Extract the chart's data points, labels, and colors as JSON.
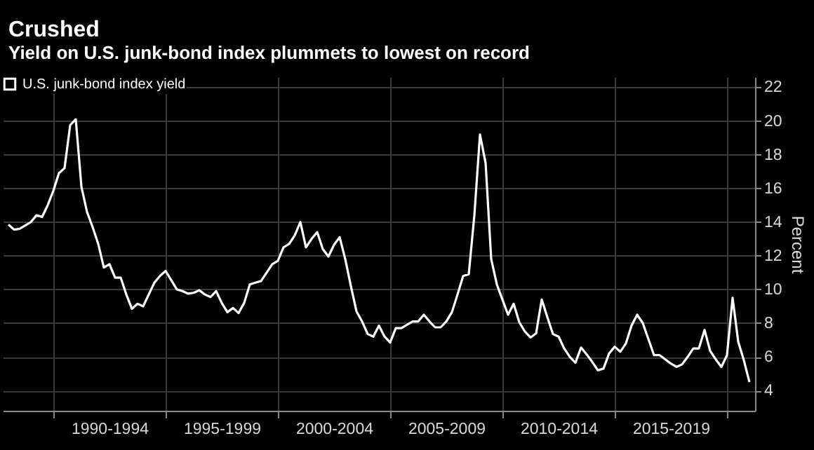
{
  "chart_data": {
    "type": "line",
    "title": "Crushed",
    "subtitle": "Yield on U.S. junk-bond index plummets to lowest on record",
    "ylabel": "Percent",
    "categories": [
      null,
      null,
      null,
      null,
      null,
      null,
      null,
      null,
      null,
      null,
      null,
      null,
      null,
      null,
      null,
      null,
      null,
      null,
      "1990-1994",
      null,
      null,
      null,
      null,
      null,
      null,
      null,
      null,
      null,
      null,
      null,
      null,
      null,
      null,
      null,
      null,
      null,
      null,
      null,
      "1995-1999",
      null,
      null,
      null,
      null,
      null,
      null,
      null,
      null,
      null,
      null,
      null,
      null,
      null,
      null,
      null,
      null,
      null,
      null,
      null,
      "2000-2004",
      null,
      null,
      null,
      null,
      null,
      null,
      null,
      null,
      null,
      null,
      null,
      null,
      null,
      null,
      null,
      null,
      null,
      null,
      null,
      "2005-2009",
      null,
      null,
      null,
      null,
      null,
      null,
      null,
      null,
      null,
      null,
      null,
      null,
      null,
      null,
      null,
      null,
      null,
      null,
      null,
      "2010-2014",
      null,
      null,
      null,
      null,
      null,
      null,
      null,
      null,
      null,
      null,
      null,
      null,
      null,
      null,
      null,
      null,
      null,
      null,
      null,
      "2015-2019",
      null,
      null,
      null,
      null,
      null,
      null,
      null,
      null,
      null,
      null,
      null,
      null,
      null,
      null
    ],
    "series": [
      {
        "name": "U.S. junk-bond index yield",
        "color": "#ffffff",
        "values": [
          13.85,
          13.55,
          13.6,
          13.8,
          14.0,
          14.4,
          14.3,
          15.0,
          15.85,
          16.9,
          17.2,
          19.75,
          20.1,
          16.1,
          14.6,
          13.7,
          12.7,
          11.3,
          11.5,
          10.7,
          10.7,
          9.7,
          8.85,
          9.15,
          9.0,
          9.7,
          10.4,
          10.8,
          11.1,
          10.55,
          10.0,
          9.9,
          9.75,
          9.8,
          9.95,
          9.7,
          9.55,
          9.9,
          9.2,
          8.65,
          8.9,
          8.6,
          9.2,
          10.3,
          10.4,
          10.5,
          11.0,
          11.5,
          11.7,
          12.5,
          12.7,
          13.2,
          14.0,
          12.5,
          13.0,
          13.4,
          12.4,
          11.95,
          12.65,
          13.1,
          11.8,
          10.2,
          8.7,
          8.1,
          7.35,
          7.2,
          7.85,
          7.2,
          6.85,
          7.7,
          7.7,
          7.9,
          8.1,
          8.1,
          8.5,
          8.1,
          7.75,
          7.75,
          8.1,
          8.65,
          9.7,
          10.8,
          10.9,
          14.4,
          19.2,
          17.5,
          11.8,
          10.3,
          9.4,
          8.5,
          9.15,
          8.05,
          7.5,
          7.15,
          7.4,
          9.4,
          8.35,
          7.35,
          7.2,
          6.5,
          6.0,
          5.65,
          6.55,
          6.15,
          5.7,
          5.2,
          5.3,
          6.2,
          6.6,
          6.3,
          6.8,
          7.85,
          8.5,
          8.0,
          7.05,
          6.1,
          6.1,
          5.85,
          5.6,
          5.4,
          5.55,
          6.0,
          6.5,
          6.5,
          7.6,
          6.35,
          5.85,
          5.4,
          6.1,
          9.5,
          6.9,
          5.8,
          4.5
        ]
      }
    ],
    "ylim": [
      2.8,
      22.6
    ],
    "yticks": [
      4,
      6,
      8,
      10,
      12,
      14,
      16,
      18,
      20,
      22
    ],
    "grid": true,
    "legend": "top left",
    "marker": "none",
    "line_style": "solid"
  }
}
